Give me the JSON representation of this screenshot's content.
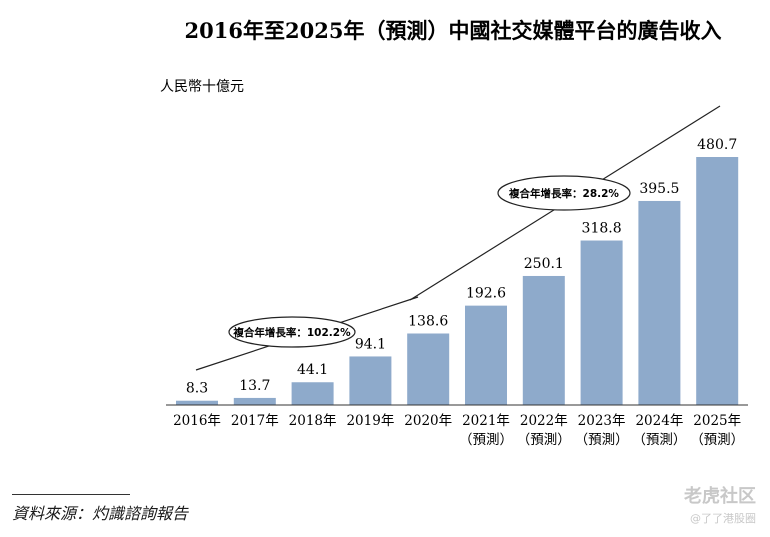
{
  "chart_data": {
    "type": "bar",
    "title": "2016年至2025年（預測）中國社交媒體平台的廣告收入",
    "unit_label": "人民幣十億元",
    "categories": [
      [
        "2016年"
      ],
      [
        "2017年"
      ],
      [
        "2018年"
      ],
      [
        "2019年"
      ],
      [
        "2020年"
      ],
      [
        "2021年",
        "（預測）"
      ],
      [
        "2022年",
        "（預測）"
      ],
      [
        "2023年",
        "（預測）"
      ],
      [
        "2024年",
        "（預測）"
      ],
      [
        "2025年",
        "（預測）"
      ]
    ],
    "values": [
      8.3,
      13.7,
      44.1,
      94.1,
      138.6,
      192.6,
      250.1,
      318.8,
      395.5,
      480.7
    ],
    "value_labels": [
      "8.3",
      "13.7",
      "44.1",
      "94.1",
      "138.6",
      "192.6",
      "250.1",
      "318.8",
      "395.5",
      "480.7"
    ],
    "ylim": [
      0,
      480.7
    ],
    "bar_color": "#8eaacb",
    "annotations": [
      {
        "label": "複合年增長率：102.2%",
        "from_index": 0,
        "to_index": 4
      },
      {
        "label": "複合年增長率：28.2%",
        "from_index": 4,
        "to_index": 9
      }
    ],
    "grid": false
  },
  "source": "資料來源：灼識諮詢報告",
  "watermark": {
    "main": "老虎社区",
    "sub": "@了了港股圈"
  }
}
